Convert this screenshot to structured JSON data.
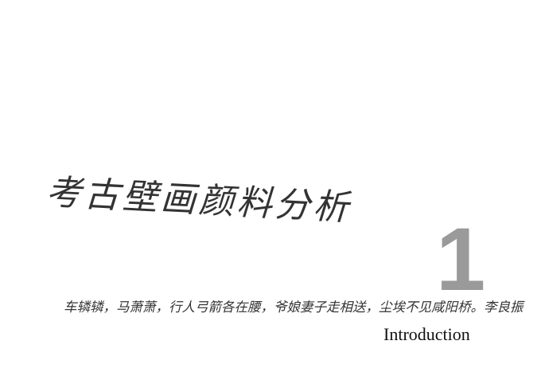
{
  "title": "考古壁画颜料分析",
  "subtitle": "车辚辚，马萧萧，行人弓箭各在腰，爷娘妻子走相送，尘埃不见咸阳桥。李良振",
  "section_number": "1",
  "section_label": "Introduction"
}
